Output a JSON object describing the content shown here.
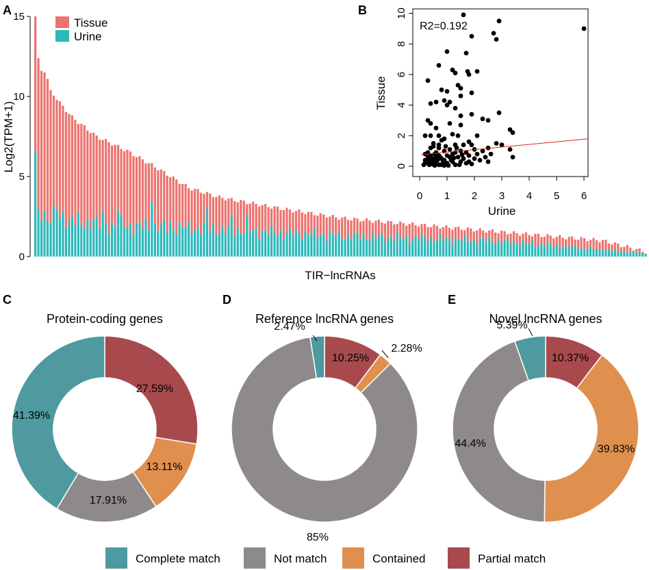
{
  "colors": {
    "tissue": "#EC736E",
    "urine": "#2EB8BA",
    "complete": "#4E9AA0",
    "not_match": "#8E8A8B",
    "contained": "#E0904E",
    "partial": "#A84A4D",
    "regression": "#E0261B"
  },
  "chart_data": [
    {
      "panel": "A",
      "type": "bar",
      "stacked": true,
      "xlabel": "TIR−lncRNAs",
      "ylabel": "Log2(TPM+1)",
      "ylim": [
        0,
        15
      ],
      "yticks": [
        "0",
        "5",
        "10",
        "15"
      ],
      "legend": [
        "Tissue",
        "Urine"
      ],
      "legend_position": "top-left",
      "n_bars": 200,
      "tissue_total_anchors": [
        [
          0,
          15.0
        ],
        [
          1,
          12.4
        ],
        [
          2,
          11.6
        ],
        [
          3,
          11.5
        ],
        [
          4,
          11.1
        ],
        [
          5,
          10.4
        ],
        [
          8,
          9.6
        ],
        [
          12,
          8.7
        ],
        [
          20,
          7.5
        ],
        [
          30,
          6.6
        ],
        [
          40,
          5.5
        ],
        [
          50,
          4.3
        ],
        [
          60,
          3.7
        ],
        [
          80,
          3.0
        ],
        [
          100,
          2.4
        ],
        [
          130,
          1.9
        ],
        [
          160,
          1.4
        ],
        [
          185,
          1.0
        ],
        [
          199,
          0.3
        ]
      ],
      "urine_anchors": [
        [
          0,
          6.0
        ],
        [
          1,
          3.0
        ],
        [
          5,
          2.6
        ],
        [
          20,
          2.0
        ],
        [
          50,
          1.8
        ],
        [
          100,
          1.3
        ],
        [
          150,
          1.0
        ],
        [
          199,
          0.2
        ]
      ],
      "urine_spikes": [
        [
          1,
          3.0
        ],
        [
          4,
          2.2
        ],
        [
          7,
          2.9
        ],
        [
          15,
          2.0
        ],
        [
          19,
          2.3
        ],
        [
          22,
          2.8
        ],
        [
          27,
          2.9
        ],
        [
          38,
          3.4
        ],
        [
          44,
          2.2
        ],
        [
          56,
          3.0
        ],
        [
          64,
          2.6
        ],
        [
          69,
          2.6
        ]
      ]
    },
    {
      "panel": "B",
      "type": "scatter",
      "xlabel": "Urine",
      "ylabel": "Tissue",
      "xlim": [
        0,
        6.2
      ],
      "ylim": [
        -0.3,
        10.3
      ],
      "xticks": [
        "0",
        "1",
        "2",
        "3",
        "4",
        "5",
        "6"
      ],
      "yticks": [
        "0",
        "2",
        "4",
        "6",
        "8",
        "10"
      ],
      "annotation": "R2=0.192",
      "regression": {
        "intercept": 0.75,
        "slope": 0.17
      },
      "points": [
        [
          1.6,
          9.9
        ],
        [
          2.9,
          9.5
        ],
        [
          6.0,
          9.0
        ],
        [
          2.7,
          8.7
        ],
        [
          2.8,
          8.3
        ],
        [
          1.9,
          8.5
        ],
        [
          1.0,
          7.5
        ],
        [
          1.7,
          7.4
        ],
        [
          0.7,
          6.6
        ],
        [
          1.2,
          6.3
        ],
        [
          1.3,
          6.1
        ],
        [
          1.75,
          6.2
        ],
        [
          1.8,
          6.0
        ],
        [
          2.1,
          6.2
        ],
        [
          0.3,
          5.6
        ],
        [
          1.4,
          5.3
        ],
        [
          1.5,
          5.1
        ],
        [
          0.8,
          5.0
        ],
        [
          1.0,
          4.9
        ],
        [
          1.9,
          4.8
        ],
        [
          1.5,
          4.6
        ],
        [
          0.9,
          4.3
        ],
        [
          0.4,
          4.1
        ],
        [
          0.6,
          4.2
        ],
        [
          1.0,
          4.0
        ],
        [
          1.1,
          4.2
        ],
        [
          1.3,
          3.8
        ],
        [
          2.9,
          3.5
        ],
        [
          1.9,
          3.4
        ],
        [
          1.5,
          3.3
        ],
        [
          2.3,
          3.1
        ],
        [
          0.3,
          3.0
        ],
        [
          2.5,
          3.0
        ],
        [
          0.4,
          2.8
        ],
        [
          1.1,
          2.8
        ],
        [
          1.5,
          2.7
        ],
        [
          0.6,
          2.5
        ],
        [
          3.3,
          2.4
        ],
        [
          0.2,
          2.0
        ],
        [
          3.4,
          2.2
        ],
        [
          0.4,
          2.0
        ],
        [
          0.7,
          2.0
        ],
        [
          1.2,
          2.1
        ],
        [
          1.4,
          2.0
        ],
        [
          2.1,
          2.0
        ],
        [
          0.9,
          1.8
        ],
        [
          0.8,
          1.7
        ],
        [
          1.8,
          1.6
        ],
        [
          2.8,
          1.5
        ],
        [
          0.5,
          1.5
        ],
        [
          1.3,
          1.4
        ],
        [
          1.6,
          1.4
        ],
        [
          1.9,
          1.4
        ],
        [
          3.0,
          1.4
        ],
        [
          0.5,
          1.3
        ],
        [
          2.5,
          1.2
        ],
        [
          0.4,
          1.2
        ],
        [
          0.7,
          1.2
        ],
        [
          1.1,
          1.1
        ],
        [
          1.5,
          1.0
        ],
        [
          2.0,
          1.1
        ],
        [
          2.3,
          1.0
        ],
        [
          3.3,
          1.1
        ],
        [
          0.3,
          0.9
        ],
        [
          0.6,
          0.9
        ],
        [
          0.9,
          1.0
        ],
        [
          1.3,
          0.9
        ],
        [
          1.7,
          0.9
        ],
        [
          2.1,
          0.8
        ],
        [
          2.6,
          0.8
        ],
        [
          0.2,
          0.8
        ],
        [
          0.4,
          0.7
        ],
        [
          0.7,
          0.7
        ],
        [
          1.0,
          0.7
        ],
        [
          1.2,
          0.8
        ],
        [
          1.8,
          0.7
        ],
        [
          2.4,
          0.6
        ],
        [
          3.4,
          0.6
        ],
        [
          0.3,
          0.6
        ],
        [
          0.5,
          0.5
        ],
        [
          0.8,
          0.5
        ],
        [
          1.1,
          0.6
        ],
        [
          1.4,
          0.6
        ],
        [
          1.6,
          0.5
        ],
        [
          2.0,
          0.5
        ],
        [
          2.2,
          0.4
        ],
        [
          0.2,
          0.4
        ],
        [
          0.4,
          0.4
        ],
        [
          0.6,
          0.3
        ],
        [
          0.9,
          0.4
        ],
        [
          1.2,
          0.3
        ],
        [
          1.5,
          0.3
        ],
        [
          1.8,
          0.3
        ],
        [
          0.3,
          0.2
        ],
        [
          0.5,
          0.2
        ],
        [
          0.7,
          0.1
        ],
        [
          1.0,
          0.2
        ],
        [
          1.3,
          0.1
        ],
        [
          1.7,
          0.2
        ],
        [
          0.15,
          0.1
        ],
        [
          0.35,
          0.1
        ],
        [
          0.55,
          0.05
        ],
        [
          0.8,
          0.1
        ],
        [
          1.05,
          0.05
        ],
        [
          1.45,
          0.1
        ],
        [
          0.25,
          0.3
        ],
        [
          0.45,
          0.25
        ],
        [
          0.65,
          0.4
        ],
        [
          0.85,
          0.25
        ],
        [
          1.15,
          0.4
        ],
        [
          0.75,
          0.6
        ],
        [
          1.9,
          0.15
        ],
        [
          2.5,
          0.3
        ],
        [
          0.95,
          1.3
        ],
        [
          1.35,
          1.2
        ],
        [
          0.55,
          0.8
        ],
        [
          0.35,
          0.45
        ],
        [
          0.6,
          0.6
        ],
        [
          1.25,
          0.55
        ],
        [
          0.45,
          0.15
        ],
        [
          0.9,
          0.05
        ],
        [
          0.2,
          0.2
        ],
        [
          1.55,
          0.75
        ],
        [
          0.7,
          1.4
        ]
      ]
    },
    {
      "panel": "C",
      "type": "pie",
      "donut": true,
      "title": "Protein-coding genes",
      "slices": [
        {
          "name": "Partial match",
          "value": 27.59,
          "label": "27.59%",
          "color_key": "partial"
        },
        {
          "name": "Contained",
          "value": 13.11,
          "label": "13.11%",
          "color_key": "contained"
        },
        {
          "name": "Not match",
          "value": 17.91,
          "label": "17.91%",
          "color_key": "not_match"
        },
        {
          "name": "Complete match",
          "value": 41.39,
          "label": "41.39%",
          "color_key": "complete"
        }
      ]
    },
    {
      "panel": "D",
      "type": "pie",
      "donut": true,
      "title": "Reference lncRNA genes",
      "slices": [
        {
          "name": "Partial match",
          "value": 10.25,
          "label": "10.25%",
          "color_key": "partial"
        },
        {
          "name": "Contained",
          "value": 2.28,
          "label": "2.28%",
          "color_key": "contained"
        },
        {
          "name": "Not match",
          "value": 85,
          "label": "85%",
          "color_key": "not_match"
        },
        {
          "name": "Complete match",
          "value": 2.47,
          "label": "2.47%",
          "color_key": "complete"
        }
      ]
    },
    {
      "panel": "E",
      "type": "pie",
      "donut": true,
      "title": "Novel lncRNA genes",
      "slices": [
        {
          "name": "Partial match",
          "value": 10.37,
          "label": "10.37%",
          "color_key": "partial"
        },
        {
          "name": "Contained",
          "value": 39.83,
          "label": "39.83%",
          "color_key": "contained"
        },
        {
          "name": "Not match",
          "value": 44.4,
          "label": "44.4%",
          "color_key": "not_match"
        },
        {
          "name": "Complete match",
          "value": 5.39,
          "label": "5.39%",
          "color_key": "complete"
        }
      ]
    }
  ],
  "panel_labels": [
    "A",
    "B",
    "C",
    "D",
    "E"
  ],
  "legend": [
    {
      "label": "Complete match",
      "color_key": "complete"
    },
    {
      "label": "Not match",
      "color_key": "not_match"
    },
    {
      "label": "Contained",
      "color_key": "contained"
    },
    {
      "label": "Partial match",
      "color_key": "partial"
    }
  ]
}
